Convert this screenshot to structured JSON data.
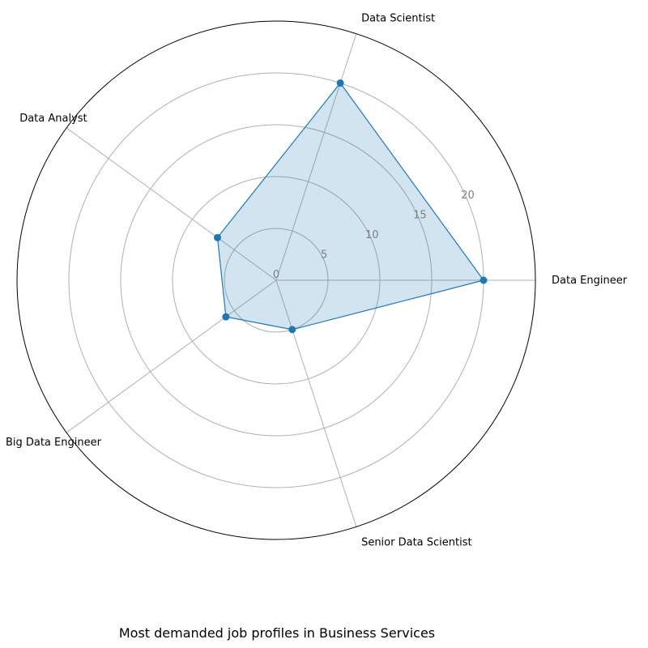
{
  "chart_data": {
    "type": "radar",
    "title": "Most demanded job profiles in Business Services",
    "categories": [
      "Data Engineer",
      "Data Scientist",
      "Data Analyst",
      "Big Data Engineer",
      "Senior Data Scientist"
    ],
    "series": [
      {
        "values": [
          20,
          20,
          7,
          6,
          5
        ]
      }
    ],
    "rlim": [
      0,
      25
    ],
    "r_ticks": [
      0,
      5,
      10,
      15,
      20
    ],
    "r_tick_labels": [
      "0",
      "5",
      "10",
      "15",
      "20"
    ],
    "grid": true,
    "colors": {
      "line": "#1f77b4",
      "fill": "#1f77b4",
      "grid": "#b0b0b0",
      "frame": "#000000",
      "tick_text": "#808080"
    }
  }
}
